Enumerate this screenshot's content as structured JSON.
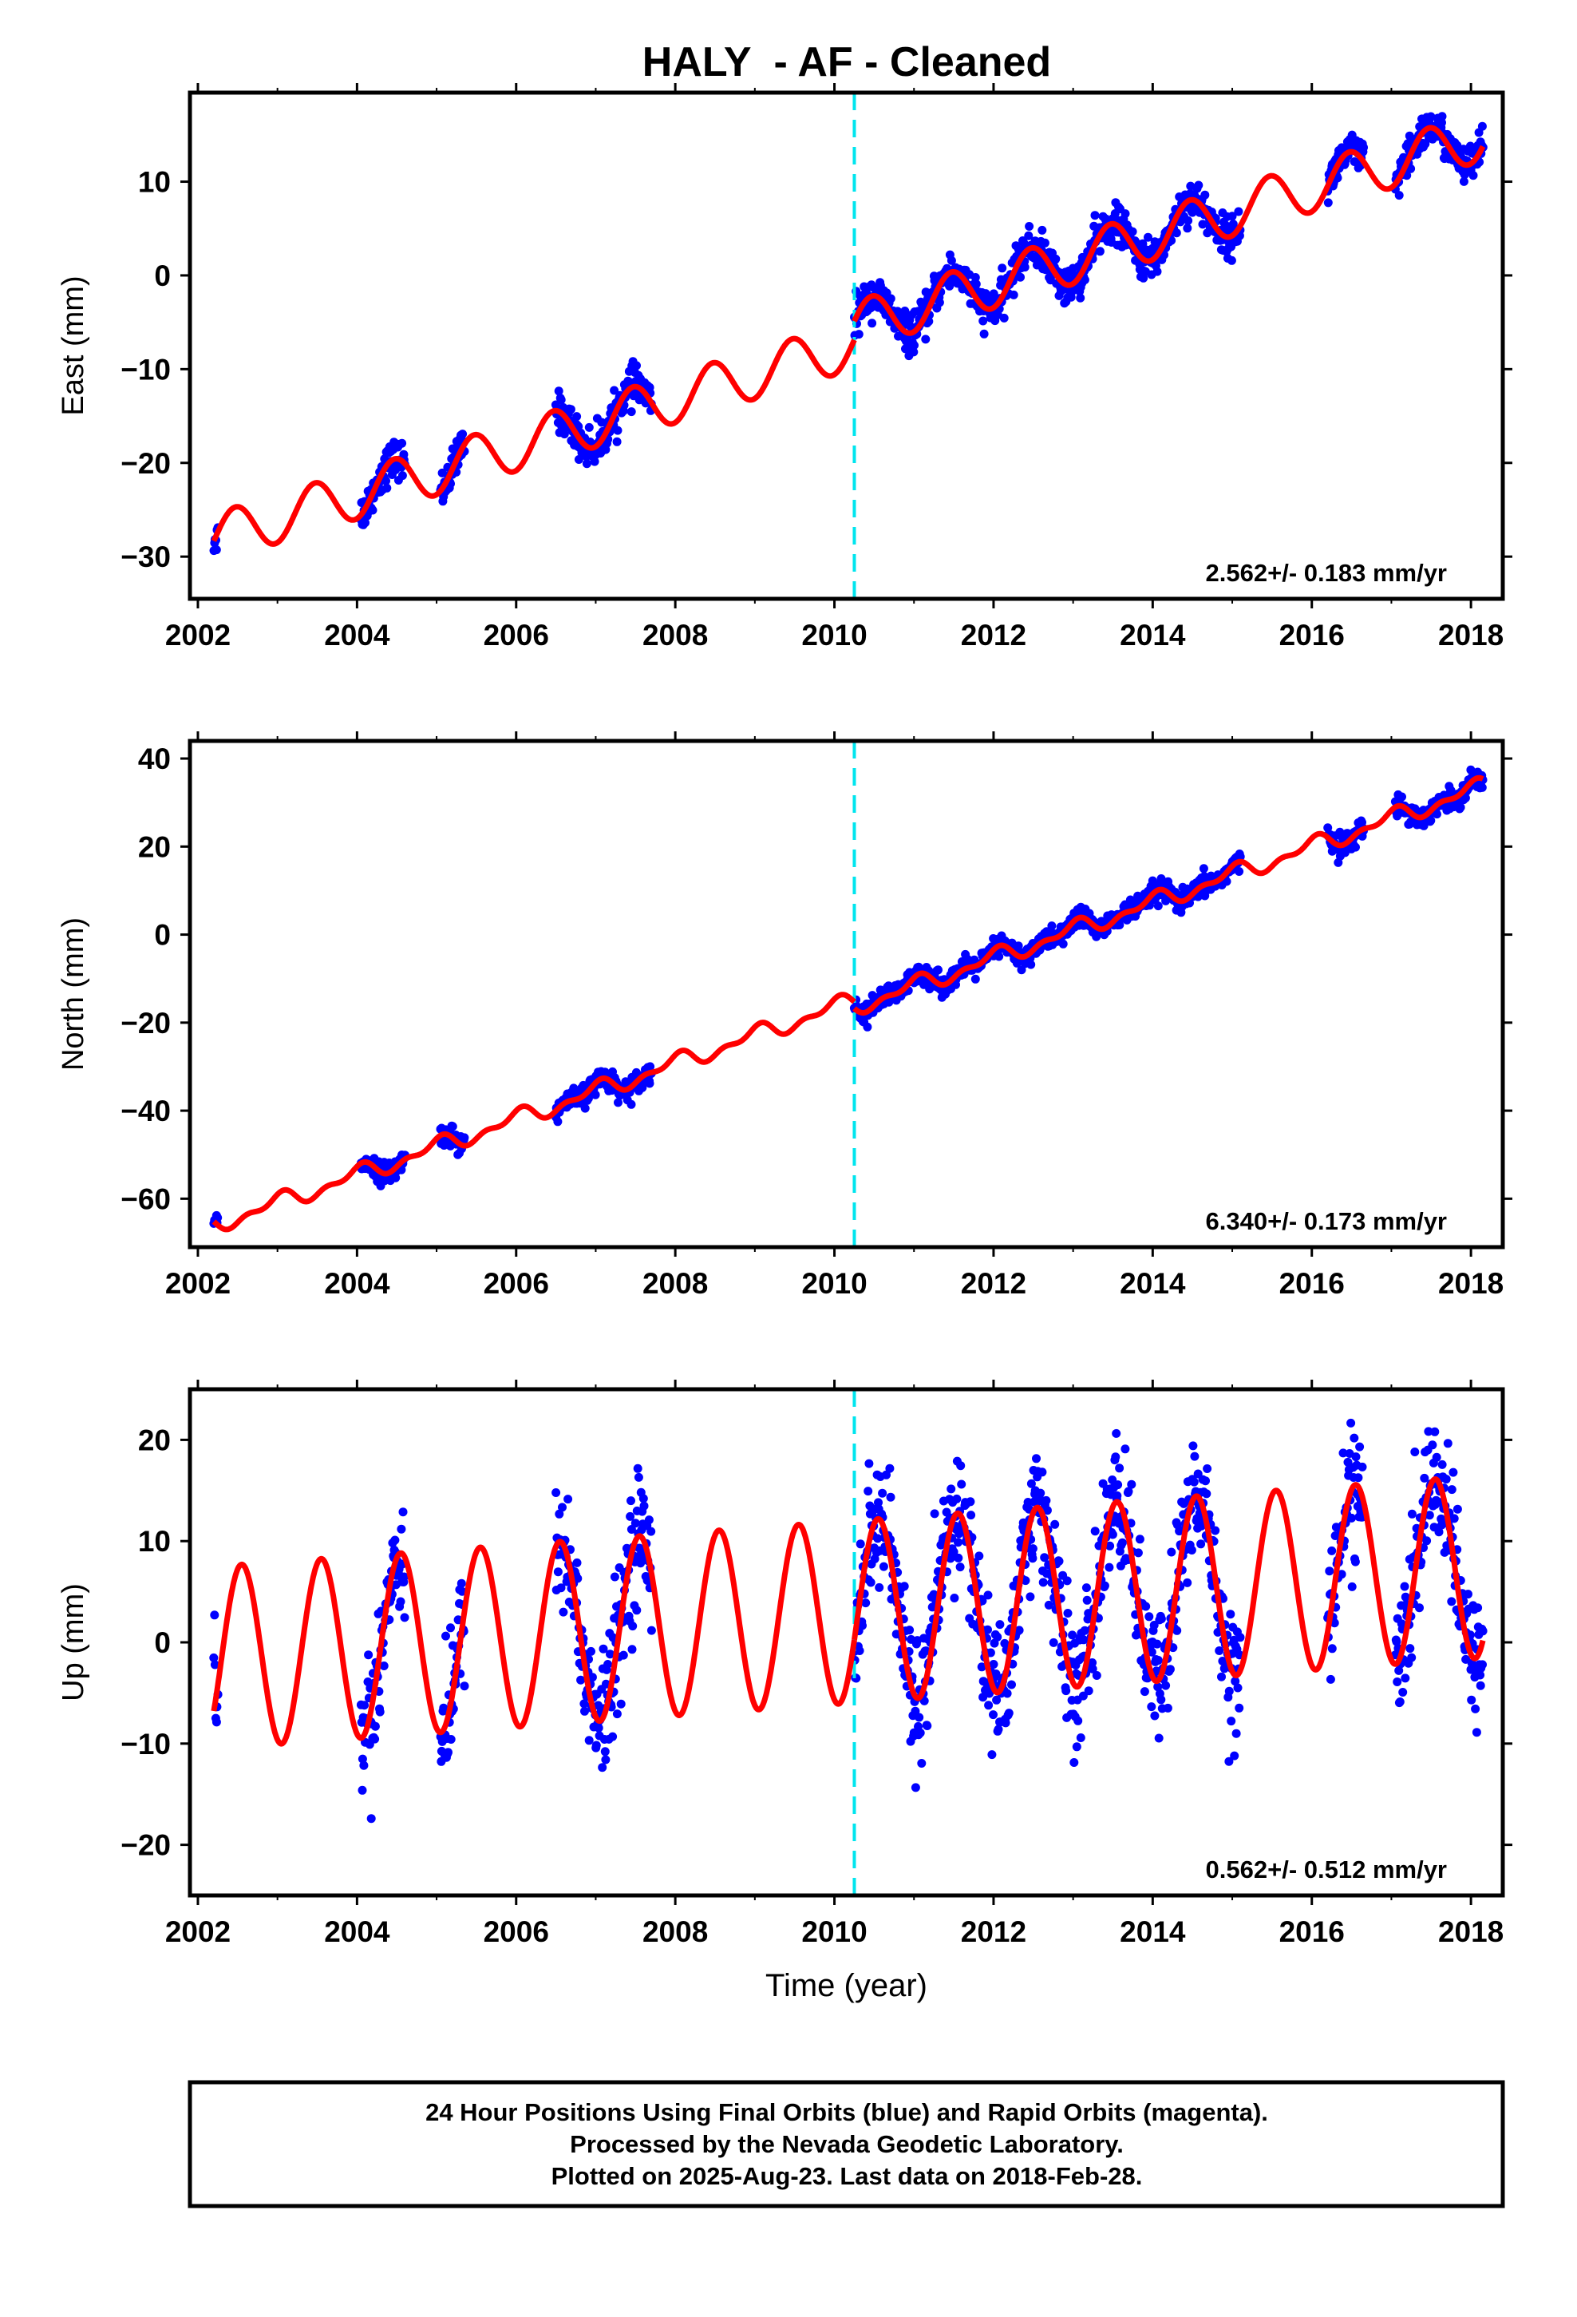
{
  "title": "HALY  - AF - Cleaned",
  "footer": {
    "line1": "24 Hour Positions Using Final Orbits (blue) and Rapid Orbits (magenta).",
    "line2": "Processed by the Nevada Geodetic Laboratory.",
    "line3": "Plotted on 2025-Aug-23. Last data on 2018-Feb-28."
  },
  "colors": {
    "data": "#0000ff",
    "model": "#ff0000",
    "offset": "#00e5ee",
    "frame": "#000000"
  },
  "chart_data": [
    {
      "type": "scatter",
      "ylabel": "East (mm)",
      "xlabel": "",
      "xlim": [
        2001.9,
        2018.4
      ],
      "ylim": [
        -34.5,
        19.5
      ],
      "xticks": [
        2002,
        2004,
        2006,
        2008,
        2010,
        2012,
        2014,
        2016,
        2018
      ],
      "yticks": [
        -30,
        -20,
        -10,
        0,
        10
      ],
      "rate_label": "2.562+/- 0.183 mm/yr",
      "offset_epoch": 2010.25,
      "model": {
        "start": 2002.2,
        "end": 2018.15,
        "ref_epoch": 2002.2,
        "intercept": -28,
        "rate": 2.562,
        "step_at_offset": 2.0,
        "annual_amplitude": 2.6,
        "annual_phase_peak": 0.47,
        "semiannual_amplitude": 0
      },
      "data_segments": [
        [
          2002.2,
          2002.25
        ],
        [
          2004.05,
          2004.6
        ],
        [
          2005.05,
          2005.35
        ],
        [
          2006.5,
          2007.7
        ],
        [
          2010.25,
          2015.1
        ],
        [
          2016.2,
          2016.65
        ],
        [
          2017.05,
          2018.15
        ]
      ],
      "scatter_sd": 1.0,
      "series": [
        {
          "name": "Final Orbits (blue)",
          "role": "data"
        },
        {
          "name": "model",
          "role": "fit"
        }
      ]
    },
    {
      "type": "scatter",
      "ylabel": "North (mm)",
      "xlabel": "",
      "xlim": [
        2001.9,
        2018.4
      ],
      "ylim": [
        -71,
        44
      ],
      "xticks": [
        2002,
        2004,
        2006,
        2008,
        2010,
        2012,
        2014,
        2016,
        2018
      ],
      "yticks": [
        -60,
        -40,
        -20,
        0,
        20,
        40
      ],
      "rate_label": "6.340+/- 0.173 mm/yr",
      "offset_epoch": 2010.25,
      "model": {
        "start": 2002.2,
        "end": 2018.15,
        "ref_epoch": 2002.2,
        "intercept": -66,
        "rate": 6.34,
        "step_at_offset": -1.5,
        "annual_amplitude": 1.6,
        "annual_phase_peak": 0.0,
        "semiannual_amplitude": 1.0
      },
      "data_segments": [
        [
          2002.2,
          2002.25
        ],
        [
          2004.05,
          2004.6
        ],
        [
          2005.05,
          2005.35
        ],
        [
          2006.5,
          2007.7
        ],
        [
          2010.25,
          2015.1
        ],
        [
          2016.2,
          2016.65
        ],
        [
          2017.05,
          2018.15
        ]
      ],
      "scatter_sd": 1.2,
      "series": [
        {
          "name": "Final Orbits (blue)",
          "role": "data"
        },
        {
          "name": "model",
          "role": "fit"
        }
      ]
    },
    {
      "type": "scatter",
      "ylabel": "Up (mm)",
      "xlabel": "Time (year)",
      "xlim": [
        2001.9,
        2018.4
      ],
      "ylim": [
        -25,
        25
      ],
      "xticks": [
        2002,
        2004,
        2006,
        2008,
        2010,
        2012,
        2014,
        2016,
        2018
      ],
      "yticks": [
        -20,
        -10,
        0,
        10,
        20
      ],
      "rate_label": "0.562+/- 0.512 mm/yr",
      "offset_epoch": 2010.25,
      "model": {
        "start": 2002.2,
        "end": 2018.15,
        "ref_epoch": 2002.2,
        "intercept": -1.5,
        "rate": 0.562,
        "step_at_offset": 0,
        "annual_amplitude": 9.0,
        "annual_phase_peak": 0.55,
        "semiannual_amplitude": 0
      },
      "data_segments": [
        [
          2002.2,
          2002.25
        ],
        [
          2004.05,
          2004.6
        ],
        [
          2005.05,
          2005.35
        ],
        [
          2006.5,
          2007.7
        ],
        [
          2010.25,
          2015.1
        ],
        [
          2016.2,
          2016.65
        ],
        [
          2017.05,
          2018.15
        ]
      ],
      "scatter_sd": 3.2,
      "series": [
        {
          "name": "Final Orbits (blue)",
          "role": "data"
        },
        {
          "name": "model",
          "role": "fit"
        }
      ]
    }
  ]
}
